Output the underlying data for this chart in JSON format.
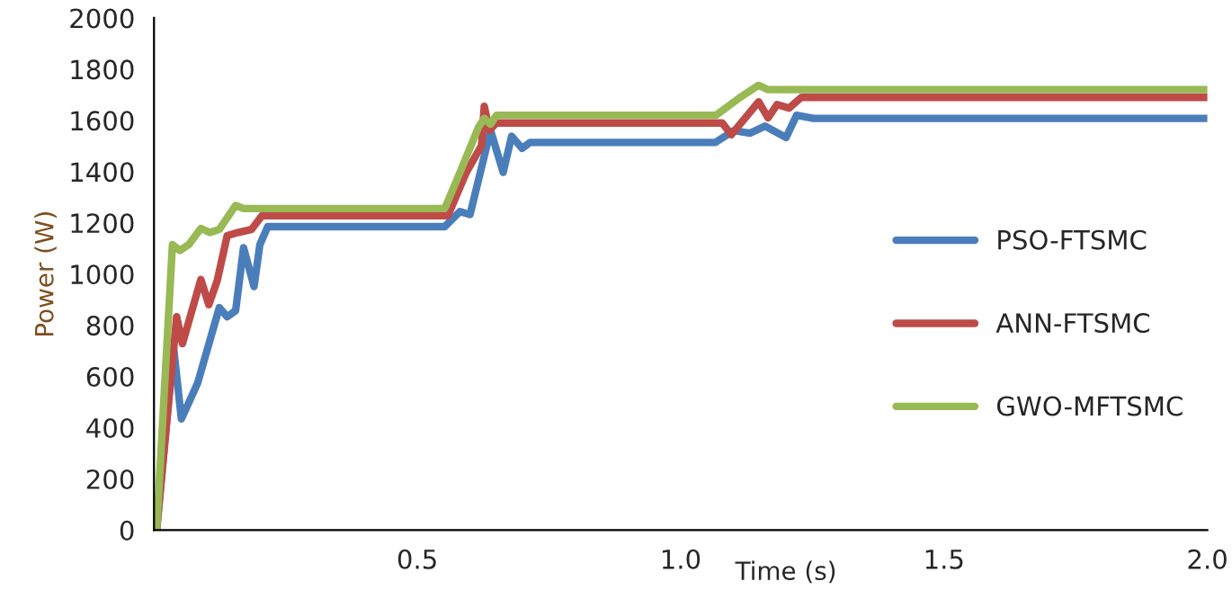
{
  "chart_data": {
    "type": "line",
    "xlabel": "Time (s)",
    "ylabel": "Power (W)",
    "xlim": [
      0,
      2.0
    ],
    "xticks": [
      0.5,
      {
        "value": 1,
        "label": "1.0"
      },
      1.5,
      {
        "value": 2,
        "label": "2.0"
      }
    ],
    "ylim": [
      0,
      2000
    ],
    "yticks": [
      0,
      200,
      400,
      600,
      800,
      1000,
      1200,
      1400,
      1600,
      1800,
      2000
    ],
    "grid": false,
    "legend": "right",
    "marker": "none",
    "line_style": "solid",
    "series": [
      {
        "name": "PSO-FTSMC",
        "color": "#4a7ebb",
        "x": [
          0.005,
          0.037,
          0.052,
          0.083,
          0.124,
          0.139,
          0.155,
          0.17,
          0.19,
          0.201,
          0.216,
          0.552,
          0.581,
          0.6,
          0.639,
          0.663,
          0.679,
          0.699,
          0.714,
          1.066,
          1.101,
          1.132,
          1.16,
          1.2,
          1.22,
          1.252,
          2.0
        ],
        "values": [
          0,
          716,
          434,
          575,
          869,
          833,
          857,
          1103,
          951,
          1115,
          1185,
          1185,
          1244,
          1232,
          1561,
          1397,
          1538,
          1491,
          1514,
          1514,
          1560,
          1550,
          1578,
          1533,
          1620,
          1608,
          1608
        ]
      },
      {
        "name": "ANN-FTSMC",
        "color": "#be4b48",
        "x": [
          0.005,
          0.043,
          0.054,
          0.089,
          0.104,
          0.12,
          0.139,
          0.159,
          0.185,
          0.205,
          0.558,
          0.593,
          0.622,
          0.627,
          0.637,
          0.65,
          1.079,
          1.096,
          1.148,
          1.166,
          1.183,
          1.206,
          1.229,
          2.0
        ],
        "values": [
          0,
          833,
          728,
          979,
          880,
          974,
          1150,
          1162,
          1174,
          1228,
          1228,
          1397,
          1502,
          1655,
          1561,
          1590,
          1590,
          1544,
          1673,
          1610,
          1662,
          1648,
          1690,
          1690
        ]
      },
      {
        "name": "GWO-MFTSMC",
        "color": "#98b954",
        "x": [
          0.005,
          0.035,
          0.049,
          0.066,
          0.089,
          0.106,
          0.124,
          0.139,
          0.155,
          0.17,
          0.552,
          0.581,
          0.616,
          0.627,
          0.639,
          0.65,
          1.067,
          1.113,
          1.148,
          1.166,
          2.0
        ],
        "values": [
          0,
          1115,
          1092,
          1115,
          1178,
          1162,
          1174,
          1220,
          1268,
          1256,
          1256,
          1397,
          1573,
          1608,
          1585,
          1620,
          1620,
          1690,
          1737,
          1720,
          1720
        ]
      }
    ]
  }
}
